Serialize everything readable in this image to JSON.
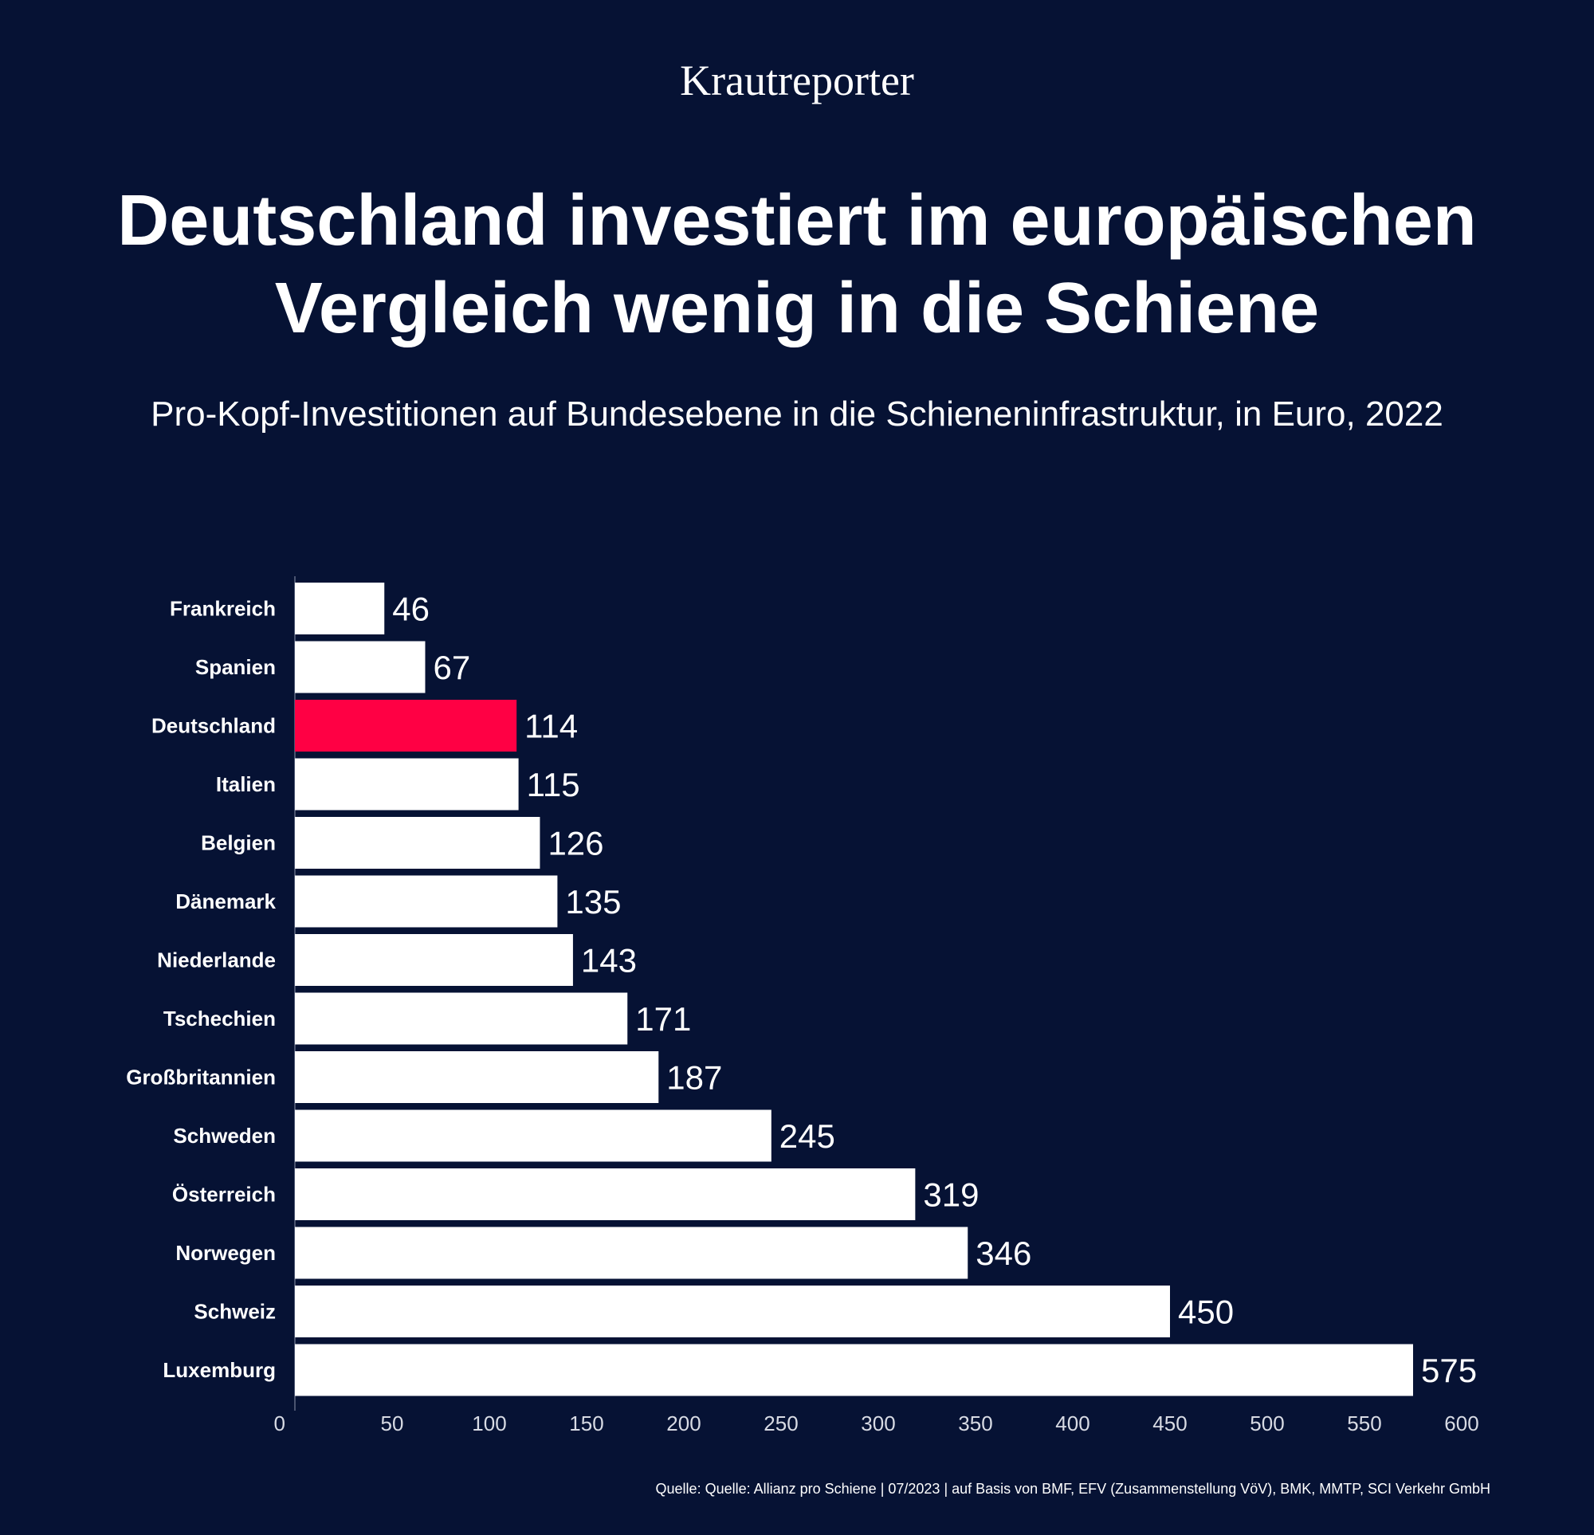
{
  "header": {
    "brand": "Krautreporter",
    "title_line1": "Deutschland investiert im europäischen",
    "title_line2": "Vergleich wenig in die Schiene",
    "subtitle": "Pro-Kopf-Investitionen auf Bundesebene in die Schieneninfrastruktur, in Euro, 2022"
  },
  "footer": {
    "source": "Quelle: Quelle: Allianz pro Schiene | 07/2023 | auf Basis von BMF, EFV (Zusammenstellung VöV), BMK, MMTP, SCI Verkehr GmbH"
  },
  "colors": {
    "background": "#061234",
    "bar": "#ffffff",
    "highlight": "#ff0044",
    "text": "#ffffff",
    "tick": "#d8dbe4",
    "axis": "#4a5470"
  },
  "chart_data": {
    "type": "bar",
    "orientation": "horizontal",
    "title": "Deutschland investiert im europäischen Vergleich wenig in die Schiene",
    "subtitle": "Pro-Kopf-Investitionen auf Bundesebene in die Schieneninfrastruktur, in Euro, 2022",
    "xlabel": "",
    "ylabel": "",
    "categories": [
      "Frankreich",
      "Spanien",
      "Deutschland",
      "Italien",
      "Belgien",
      "Dänemark",
      "Niederlande",
      "Tschechien",
      "Großbritannien",
      "Schweden",
      "Österreich",
      "Norwegen",
      "Schweiz",
      "Luxemburg"
    ],
    "values": [
      46,
      67,
      114,
      115,
      126,
      135,
      143,
      171,
      187,
      245,
      319,
      346,
      450,
      575
    ],
    "value_labels": [
      "46",
      "67",
      "114",
      "115",
      "126",
      "135",
      "143",
      "171",
      "187",
      "245",
      "319",
      "346",
      "450",
      "575"
    ],
    "highlight": "Deutschland",
    "xlim": [
      0,
      600
    ],
    "xticks": [
      0,
      50,
      100,
      150,
      200,
      250,
      300,
      350,
      400,
      450,
      500,
      550,
      600
    ],
    "grid": false,
    "legend": "none"
  }
}
